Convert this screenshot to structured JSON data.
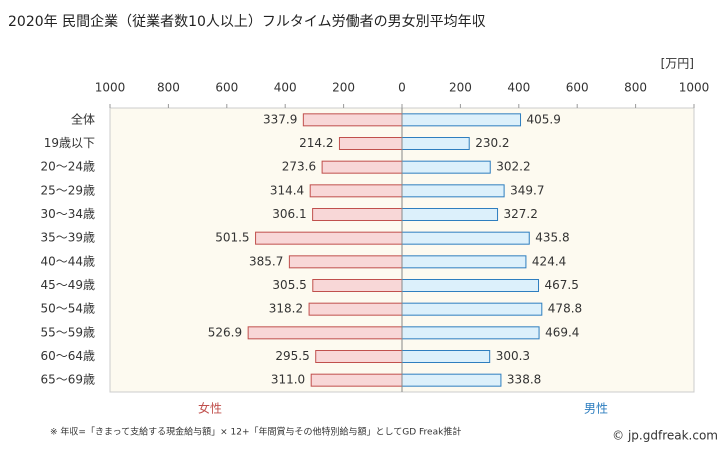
{
  "chart_data": {
    "type": "butterfly",
    "title": "2020年 民間企業（従業者数10人以上）フルタイム労働者の男女別平均年収",
    "unit": "[万円]",
    "categories": [
      "全体",
      "19歳以下",
      "20〜24歳",
      "25〜29歳",
      "30〜34歳",
      "35〜39歳",
      "40〜44歳",
      "45〜49歳",
      "50〜54歳",
      "55〜59歳",
      "60〜64歳",
      "65〜69歳"
    ],
    "series": [
      {
        "name": "女性",
        "color": "#c0504d",
        "fill": "#f8d7d7",
        "side": "left",
        "values": [
          337.9,
          214.2,
          273.6,
          314.4,
          306.1,
          501.5,
          385.7,
          305.5,
          318.2,
          526.9,
          295.5,
          311.0
        ],
        "value_labels": [
          "337.9",
          "214.2",
          "273.6",
          "314.4",
          "306.1",
          "501.5",
          "385.7",
          "305.5",
          "318.2",
          "526.9",
          "295.5",
          "311.0"
        ]
      },
      {
        "name": "男性",
        "color": "#2e7ebf",
        "fill": "#dcf0fb",
        "side": "right",
        "values": [
          405.9,
          230.2,
          302.2,
          349.7,
          327.2,
          435.8,
          424.4,
          467.5,
          478.8,
          469.4,
          300.3,
          338.8
        ],
        "value_labels": [
          "405.9",
          "230.2",
          "302.2",
          "349.7",
          "327.2",
          "435.8",
          "424.4",
          "467.5",
          "478.8",
          "469.4",
          "300.3",
          "338.8"
        ]
      }
    ],
    "xlim": [
      -1000,
      1000
    ],
    "xticks": [
      {
        "value": -1000,
        "label": "1000"
      },
      {
        "value": -800,
        "label": "800"
      },
      {
        "value": -600,
        "label": "600"
      },
      {
        "value": -400,
        "label": "400"
      },
      {
        "value": -200,
        "label": "200"
      },
      0,
      200,
      400,
      600,
      800,
      1000
    ],
    "footnote": "※ 年収=「きまって支給する現金給与額」× 12+「年間賞与その他特別給与額」としてGD Freak推計",
    "credit": "© jp.gdfreak.com"
  }
}
